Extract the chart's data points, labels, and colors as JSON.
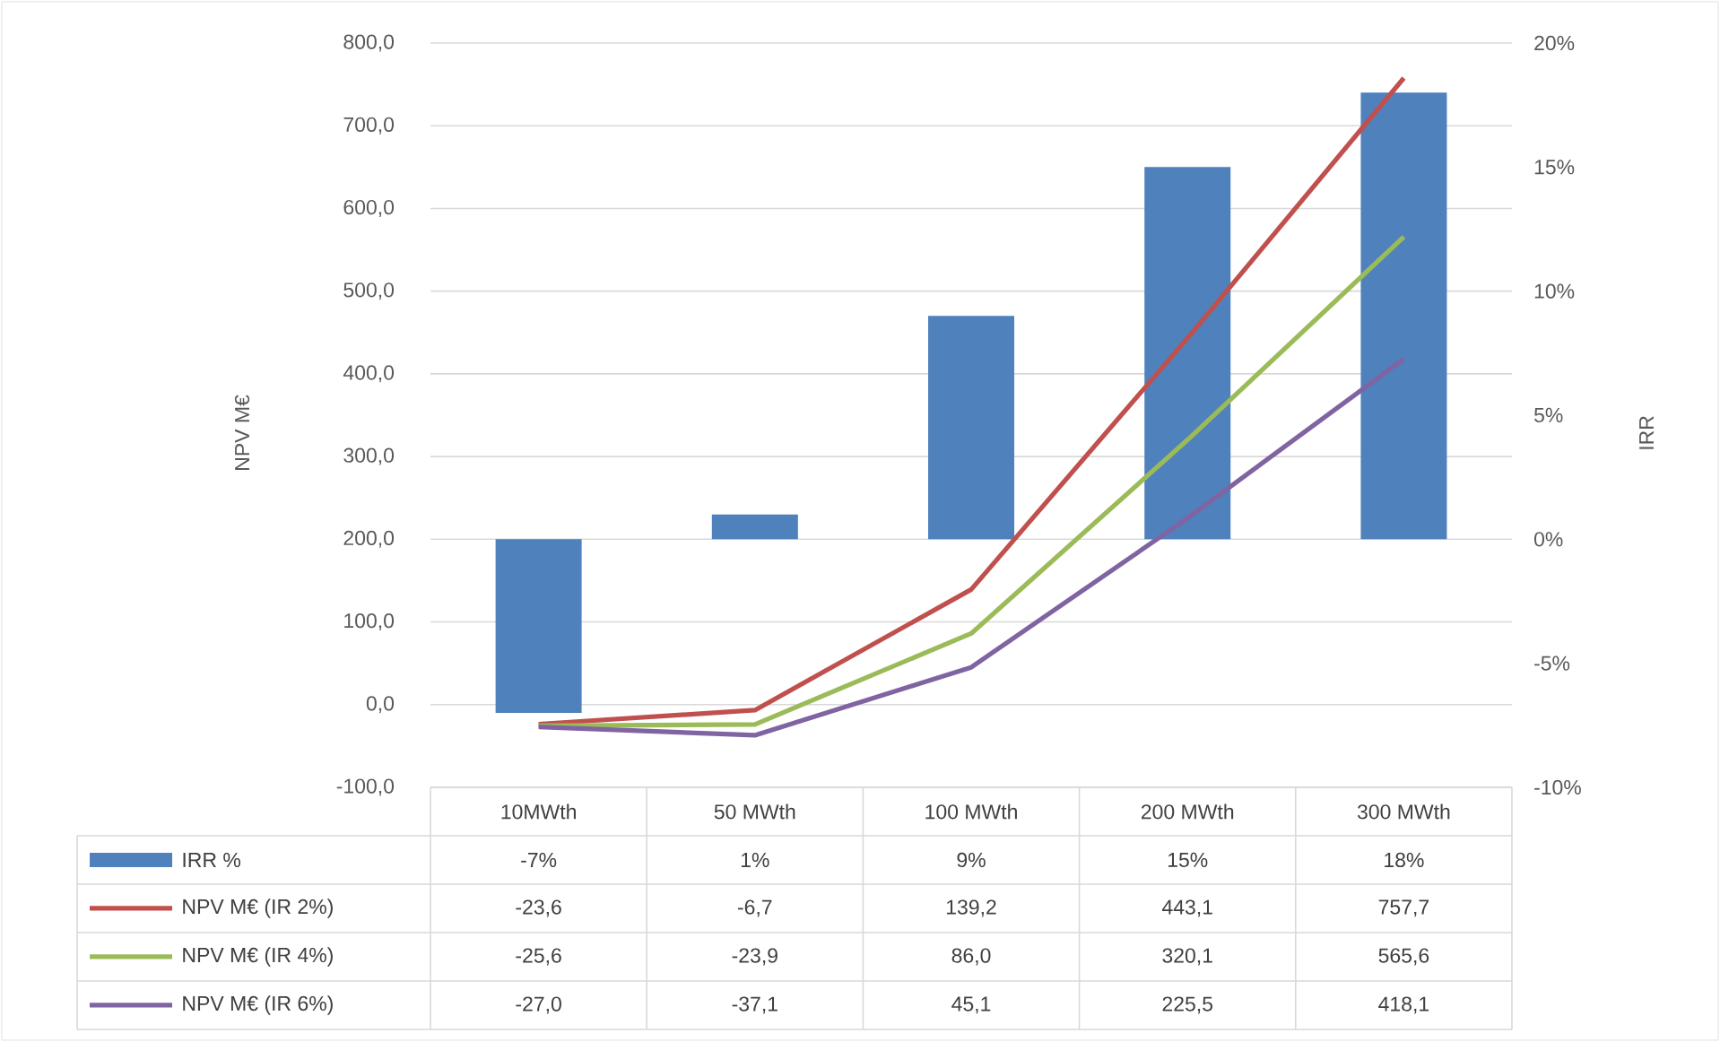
{
  "chart_data": {
    "type": "bar",
    "categories": [
      "10MWth",
      "50 MWth",
      "100 MWth",
      "200 MWth",
      "300 MWth"
    ],
    "ylabel": "NPV M€",
    "y2label": "IRR",
    "ylim": [
      -100,
      800
    ],
    "yticks": [
      {
        "value": -100,
        "label": "-100,0"
      },
      {
        "value": 0,
        "label": "0,0"
      },
      {
        "value": 100,
        "label": "100,0"
      },
      {
        "value": 200,
        "label": "200,0"
      },
      {
        "value": 300,
        "label": "300,0"
      },
      {
        "value": 400,
        "label": "400,0"
      },
      {
        "value": 500,
        "label": "500,0"
      },
      {
        "value": 600,
        "label": "600,0"
      },
      {
        "value": 700,
        "label": "700,0"
      },
      {
        "value": 800,
        "label": "800,0"
      }
    ],
    "y2lim": [
      -10,
      20
    ],
    "y2ticks": [
      {
        "value": -10,
        "label": "-10%"
      },
      {
        "value": -5,
        "label": "-5%"
      },
      {
        "value": 0,
        "label": "0%"
      },
      {
        "value": 5,
        "label": "5%"
      },
      {
        "value": 10,
        "label": "10%"
      },
      {
        "value": 15,
        "label": "15%"
      },
      {
        "value": 20,
        "label": "20%"
      }
    ],
    "grid": "y",
    "legend": "bottom",
    "series": [
      {
        "name": "IRR %",
        "axis": "y2",
        "color": "#4f81bd",
        "values": [
          -7,
          1,
          9,
          15,
          18
        ],
        "value_labels": [
          "-7%",
          "1%",
          "9%",
          "15%",
          "18%"
        ]
      },
      {
        "name": "NPV M€ (IR 2%)",
        "type": "line",
        "color": "#c0504d",
        "values": [
          -23.6,
          -6.7,
          139.2,
          443.1,
          757.7
        ],
        "value_labels": [
          "-23,6",
          "-6,7",
          "139,2",
          "443,1",
          "757,7"
        ]
      },
      {
        "name": "NPV M€ (IR 4%)",
        "type": "line",
        "color": "#9bbb59",
        "values": [
          -25.6,
          -23.9,
          86.0,
          320.1,
          565.6
        ],
        "value_labels": [
          "-25,6",
          "-23,9",
          "86,0",
          "320,1",
          "565,6"
        ]
      },
      {
        "name": "NPV M€ (IR 6%)",
        "type": "line",
        "color": "#8064a2",
        "values": [
          -27.0,
          -37.1,
          45.1,
          225.5,
          418.1
        ],
        "value_labels": [
          "-27,0",
          "-37,1",
          "45,1",
          "225,5",
          "418,1"
        ]
      }
    ]
  }
}
